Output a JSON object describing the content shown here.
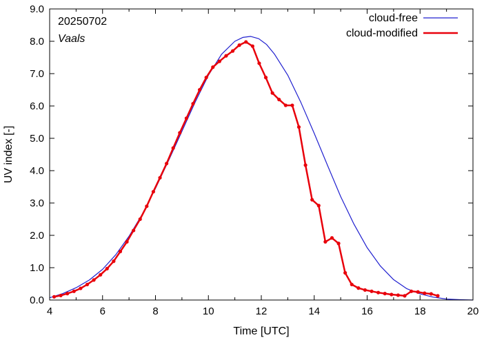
{
  "chart_data": {
    "type": "line",
    "title": "",
    "annotations": [
      "20250702",
      "Vaals"
    ],
    "xlabel": "Time  [UTC]",
    "ylabel": "UV index  [-]",
    "xlim": [
      4,
      20
    ],
    "ylim": [
      0,
      9
    ],
    "x_ticks": [
      "4",
      "6",
      "8",
      "10",
      "12",
      "14",
      "16",
      "18",
      "20"
    ],
    "y_ticks": [
      "0.0",
      "1.0",
      "2.0",
      "3.0",
      "4.0",
      "5.0",
      "6.0",
      "7.0",
      "8.0",
      "9.0"
    ],
    "legend_position": "top-right",
    "grid": false,
    "series": [
      {
        "name": "cloud-free",
        "color": "#1f1fcf",
        "markers": false,
        "x": [
          4.0,
          4.5,
          5.0,
          5.5,
          6.0,
          6.5,
          7.0,
          7.5,
          8.0,
          8.5,
          9.0,
          9.5,
          10.0,
          10.5,
          11.0,
          11.3,
          11.6,
          11.9,
          12.2,
          12.5,
          13.0,
          13.5,
          14.0,
          14.5,
          15.0,
          15.5,
          16.0,
          16.5,
          17.0,
          17.5,
          18.0,
          18.5,
          19.0,
          19.5,
          20.0
        ],
        "y": [
          0.07,
          0.2,
          0.38,
          0.62,
          0.95,
          1.4,
          1.97,
          2.65,
          3.45,
          4.32,
          5.22,
          6.12,
          6.95,
          7.6,
          8.0,
          8.12,
          8.15,
          8.08,
          7.9,
          7.6,
          6.95,
          6.1,
          5.15,
          4.17,
          3.2,
          2.35,
          1.62,
          1.05,
          0.63,
          0.35,
          0.19,
          0.09,
          0.03,
          0.01,
          0.0
        ]
      },
      {
        "name": "cloud-modified",
        "color": "#e8000b",
        "markers": true,
        "x": [
          4.17,
          4.42,
          4.67,
          4.92,
          5.17,
          5.42,
          5.67,
          5.92,
          6.17,
          6.42,
          6.67,
          6.92,
          7.17,
          7.42,
          7.67,
          7.92,
          8.17,
          8.42,
          8.67,
          8.92,
          9.17,
          9.42,
          9.67,
          9.92,
          10.17,
          10.42,
          10.67,
          10.92,
          11.17,
          11.42,
          11.67,
          11.92,
          12.17,
          12.42,
          12.67,
          12.92,
          13.17,
          13.42,
          13.67,
          13.92,
          14.17,
          14.42,
          14.67,
          14.92,
          15.17,
          15.42,
          15.67,
          15.92,
          16.17,
          16.42,
          16.67,
          16.92,
          17.17,
          17.42,
          17.67,
          17.92,
          18.17,
          18.42,
          18.67
        ],
        "y": [
          0.1,
          0.14,
          0.2,
          0.27,
          0.36,
          0.48,
          0.62,
          0.78,
          0.97,
          1.2,
          1.5,
          1.8,
          2.15,
          2.5,
          2.9,
          3.35,
          3.78,
          4.22,
          4.7,
          5.17,
          5.62,
          6.07,
          6.5,
          6.88,
          7.2,
          7.38,
          7.55,
          7.7,
          7.88,
          7.98,
          7.85,
          7.32,
          6.88,
          6.4,
          6.2,
          6.02,
          6.02,
          5.35,
          4.17,
          3.1,
          2.92,
          1.8,
          1.92,
          1.75,
          0.84,
          0.48,
          0.37,
          0.31,
          0.27,
          0.23,
          0.2,
          0.17,
          0.15,
          0.13,
          0.27,
          0.25,
          0.21,
          0.19,
          0.13
        ]
      }
    ]
  }
}
